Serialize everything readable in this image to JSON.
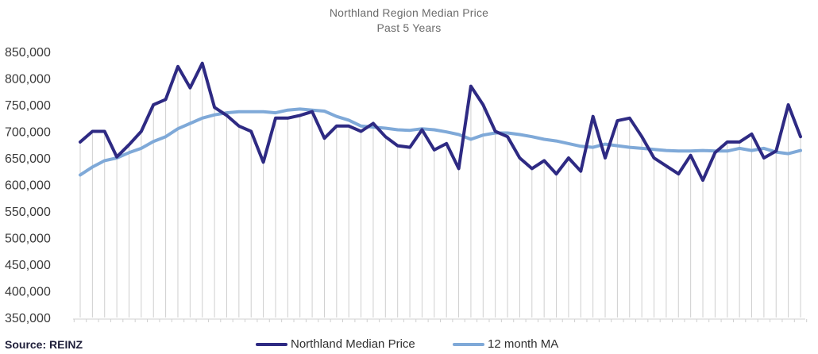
{
  "chart_data": {
    "type": "line",
    "title": "Northland Region Median Price",
    "subtitle": "Past 5 Years",
    "xlabel": "",
    "ylabel": "",
    "ylim": [
      350000,
      850000
    ],
    "y_ticks": [
      "350,000",
      "400,000",
      "450,000",
      "500,000",
      "550,000",
      "600,000",
      "650,000",
      "700,000",
      "750,000",
      "800,000",
      "850,000"
    ],
    "grid": "vertical drop lines",
    "legend_position": "bottom-right",
    "series": [
      {
        "name": "Northland Median Price",
        "color": "#2e2a83",
        "values": [
          680000,
          700000,
          700000,
          652000,
          675000,
          700000,
          750000,
          760000,
          822000,
          782000,
          828000,
          745000,
          730000,
          710000,
          700000,
          642000,
          725000,
          725000,
          730000,
          737000,
          687000,
          710000,
          710000,
          700000,
          715000,
          690000,
          673000,
          670000,
          703000,
          665000,
          677000,
          630000,
          785000,
          750000,
          700000,
          690000,
          650000,
          630000,
          645000,
          620000,
          650000,
          625000,
          728000,
          650000,
          720000,
          725000,
          690000,
          650000,
          635000,
          620000,
          655000,
          608000,
          660000,
          680000,
          680000,
          695000,
          650000,
          663000,
          750000,
          690000
        ]
      },
      {
        "name": "12 month MA",
        "color": "#7fa9d8",
        "values": [
          618000,
          633000,
          645000,
          650000,
          660000,
          668000,
          681000,
          690000,
          705000,
          715000,
          725000,
          731000,
          735000,
          737000,
          737000,
          737000,
          735000,
          740000,
          742000,
          740000,
          738000,
          728000,
          721000,
          710000,
          708000,
          706000,
          703000,
          702000,
          705000,
          703000,
          699000,
          694000,
          685000,
          693000,
          697000,
          697000,
          694000,
          690000,
          685000,
          682000,
          677000,
          672000,
          670000,
          676000,
          673000,
          670000,
          668000,
          666000,
          664000,
          663000,
          663000,
          664000,
          663000,
          663000,
          668000,
          664000,
          668000,
          661000,
          658000,
          664000
        ]
      }
    ]
  },
  "footer": {
    "source": "Source: REINZ"
  }
}
